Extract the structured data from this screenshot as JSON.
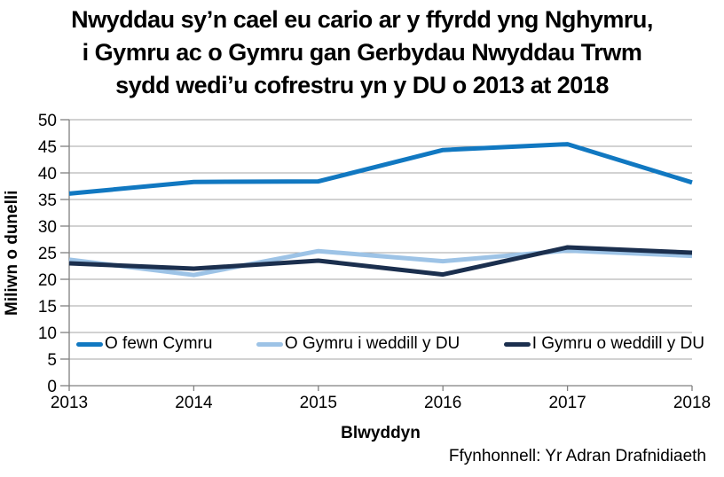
{
  "header": {
    "title_lines": [
      "Nwyddau sy’n cael eu cario ar y ffyrdd yng Nghymru,",
      "i Gymru ac o Gymru gan Gerbydau Nwyddau Trwm",
      "sydd wedi’u cofrestru yn y DU o 2013 at 2018"
    ]
  },
  "chart_data": {
    "type": "line",
    "categories": [
      "2013",
      "2014",
      "2015",
      "2016",
      "2017",
      "2018"
    ],
    "series": [
      {
        "name": "O fewn Cymru",
        "color": "#1178C1",
        "values": [
          36.1,
          38.3,
          38.4,
          44.3,
          45.4,
          38.2
        ]
      },
      {
        "name": "O Gymru i weddill y DU",
        "color": "#9DC3E6",
        "values": [
          23.7,
          20.8,
          25.3,
          23.4,
          25.4,
          24.4
        ]
      },
      {
        "name": "I Gymru o weddill y DU",
        "color": "#1B2F4E",
        "values": [
          23.0,
          22.0,
          23.5,
          20.9,
          26.0,
          25.0
        ]
      }
    ],
    "xlabel": "Blwyddyn",
    "ylabel": "Miliwn o dunelli",
    "ylim": [
      0,
      50
    ],
    "ytick_step": 5,
    "grid": true,
    "legend_position": "inside-bottom"
  },
  "footer": {
    "source": "Ffynhonnell: Yr Adran Drafnidiaeth"
  }
}
